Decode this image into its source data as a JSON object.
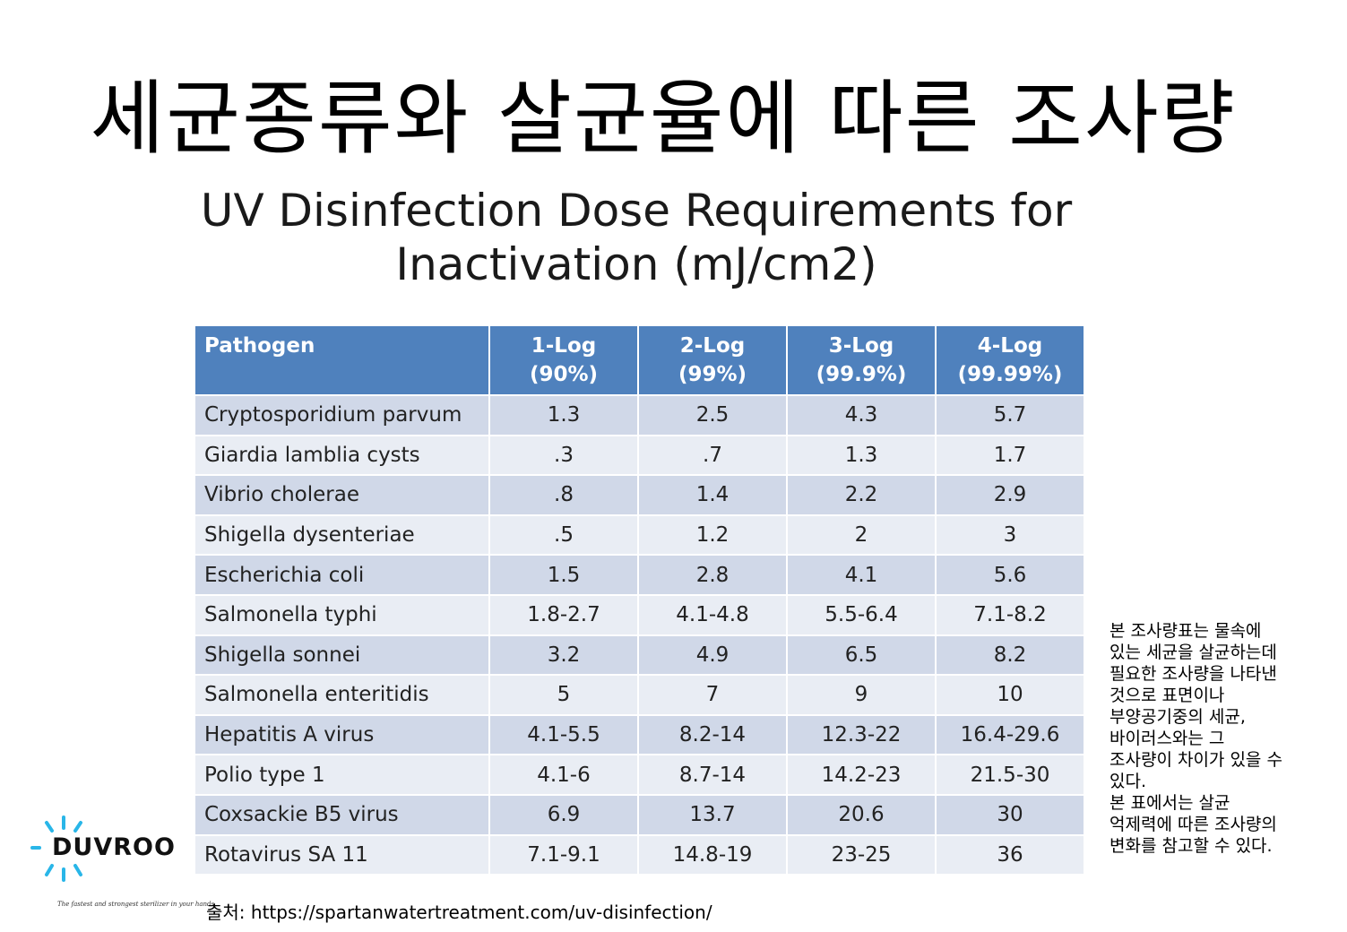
{
  "header": {
    "title": "세균종류와  살균율에 따른 조사량",
    "subtitle_line1": "UV Disinfection Dose Requirements for",
    "subtitle_line2": "Inactivation (mJ/cm2)"
  },
  "table": {
    "columns": [
      {
        "line1": "Pathogen",
        "line2": ""
      },
      {
        "line1": "1-Log",
        "line2": "(90%)"
      },
      {
        "line1": "2-Log",
        "line2": "(99%)"
      },
      {
        "line1": "3-Log",
        "line2": "(99.9%)"
      },
      {
        "line1": "4-Log",
        "line2": "(99.99%)"
      }
    ],
    "rows": [
      [
        "Cryptosporidium parvum",
        "1.3",
        "2.5",
        "4.3",
        "5.7"
      ],
      [
        "Giardia lamblia cysts",
        ".3",
        ".7",
        "1.3",
        "1.7"
      ],
      [
        "Vibrio cholerae",
        ".8",
        "1.4",
        "2.2",
        "2.9"
      ],
      [
        "Shigella dysenteriae",
        ".5",
        "1.2",
        "2",
        "3"
      ],
      [
        "Escherichia coli",
        "1.5",
        "2.8",
        "4.1",
        "5.6"
      ],
      [
        "Salmonella typhi",
        "1.8-2.7",
        "4.1-4.8",
        "5.5-6.4",
        "7.1-8.2"
      ],
      [
        "Shigella sonnei",
        "3.2",
        "4.9",
        "6.5",
        "8.2"
      ],
      [
        "Salmonella enteritidis",
        "5",
        "7",
        "9",
        "10"
      ],
      [
        "Hepatitis A virus",
        "4.1-5.5",
        "8.2-14",
        "12.3-22",
        "16.4-29.6"
      ],
      [
        "Polio type 1",
        "4.1-6",
        "8.7-14",
        "14.2-23",
        "21.5-30"
      ],
      [
        "Coxsackie B5 virus",
        "6.9",
        "13.7",
        "20.6",
        "30"
      ],
      [
        "Rotavirus SA 11",
        "7.1-9.1",
        "14.8-19",
        "23-25",
        "36"
      ]
    ]
  },
  "note": {
    "lines": [
      "본 조사량표는 물속에",
      "있는 세균을 살균하는데",
      "필요한 조사량을 나타낸",
      "것으로 표면이나",
      "부양공기중의 세균,",
      "바이러스와는 그",
      "조사량이 차이가 있을 수",
      "있다.",
      "본 표에서는 살균",
      "억제력에 따른 조사량의",
      "변화를 참고할 수 있다."
    ]
  },
  "source": {
    "text": "출처: https://spartanwatertreatment.com/uv-disinfection/"
  },
  "logo": {
    "word": "DUVROO",
    "tagline": "The fastest and strongest sterilizer in your hands.",
    "accent_color": "#29b6e8",
    "icon": "sunburst-icon"
  },
  "colors": {
    "header_bg": "#4f81bd",
    "row_odd": "#d0d8e8",
    "row_even": "#e9edf4"
  }
}
